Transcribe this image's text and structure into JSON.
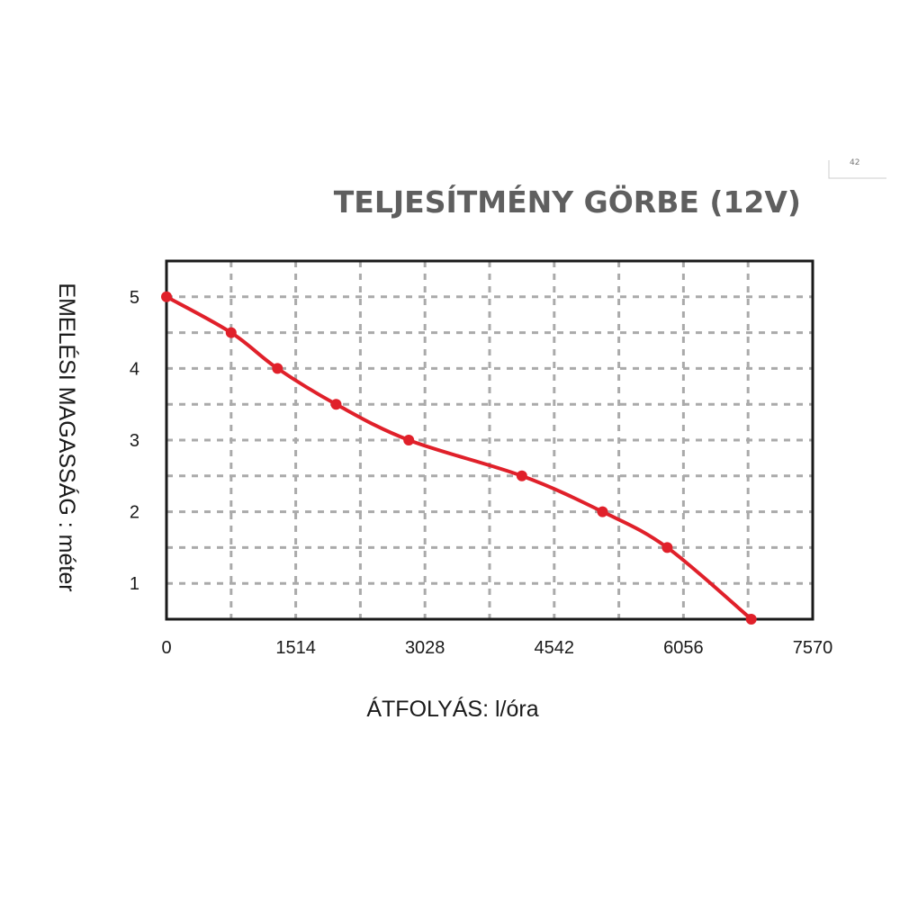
{
  "corner_note": "42",
  "chart_data": {
    "type": "line",
    "title": "TELJESÍTMÉNY GÖRBE (12V)",
    "xlabel": "ÁTFOLYÁS: l/óra",
    "ylabel": "EMELÉSI MAGASSÁG : méter",
    "xlim": [
      0,
      7570
    ],
    "ylim": [
      0.5,
      5.5
    ],
    "x_ticks": [
      0,
      1514,
      3028,
      4542,
      6056,
      7570
    ],
    "y_ticks": [
      1,
      2,
      3,
      4,
      5
    ],
    "grid": true,
    "colors": {
      "line": "#e0202a",
      "frame": "#1a1a1a",
      "grid": "#aaaaaa",
      "title": "#5f5f5f"
    },
    "series": [
      {
        "x": [
          0,
          757,
          1300,
          1987,
          2838,
          4163,
          5108,
          5866,
          6850
        ],
        "y": [
          5,
          4.5,
          4,
          3.5,
          3,
          2.5,
          2,
          1.5,
          0.5
        ]
      }
    ]
  }
}
